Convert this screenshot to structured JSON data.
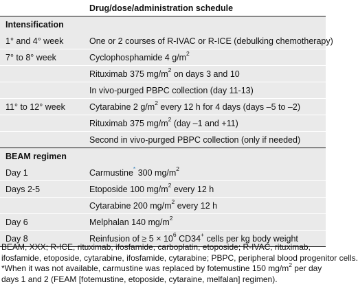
{
  "header": {
    "col2": "Drug/dose/administration schedule"
  },
  "sections": [
    {
      "title": "Intensification",
      "rows": [
        {
          "time": "1° and 4° week",
          "text": "One or 2 courses of R-IVAC or R-ICE (debulking chemotherapy)"
        },
        {
          "time": "7° to 8° week",
          "text_pre": "Cyclophosphamide 4 g/m",
          "sup": "2",
          "text_post": ""
        },
        {
          "time": "",
          "text_pre": "Rituximab 375 mg/m",
          "sup": "2",
          "text_post": " on days 3 and 10"
        },
        {
          "time": "",
          "text": "In vivo-purged PBPC collection (day 11-13)"
        },
        {
          "time": "11° to 12° week",
          "text_pre": "Cytarabine 2 g/m",
          "sup": "2",
          "text_post": " every 12 h for 4 days (days –5 to –2)"
        },
        {
          "time": "",
          "text_pre": "Rituximab 375 mg/m",
          "sup": "2",
          "text_post": " (day –1 and +11)"
        },
        {
          "time": "",
          "text": "Second in vivo-purged PBPC collection (only if needed)"
        }
      ]
    },
    {
      "title": "BEAM regimen",
      "rows": [
        {
          "time": "Day 1",
          "text_pre": "Carmustine",
          "asterisk": "*",
          "text_mid": " 300 mg/m",
          "sup": "2",
          "text_post": ""
        },
        {
          "time": "Days 2-5",
          "text_pre": "Etoposide 100 mg/m",
          "sup": "2",
          "text_post": " every 12 h"
        },
        {
          "time": "",
          "text_pre": "Cytarabine 200 mg/m",
          "sup": "2",
          "text_post": " every 12 h"
        },
        {
          "time": "Day 6",
          "text_pre": "Melphalan 140 mg/m",
          "sup": "2",
          "text_post": ""
        },
        {
          "time": "Day 8",
          "text_pre": "Reinfusion of ≥ 5 × 10",
          "sup": "6",
          "text_mid2": " CD34",
          "sup2": "+",
          "text_post": " cells per kg body weight"
        }
      ]
    }
  ],
  "footnotes": {
    "line1": "BEAM, XXX; R-ICE, rituximab, ifosfamide, carboplatin, etoposide; R-IVAC, rituximab,",
    "line2": "ifosfamide, etoposide, cytarabine, ifosfamide, cytarabine; PBPC, peripheral blood progenitor cells.",
    "line3_pre": "*When it was not available, carmustine was replaced by fotemustine 150 mg/m",
    "line3_sup": "2",
    "line3_post": " per day",
    "line4": "days 1 and 2 (FEAM [fotemustine, etoposide, cytaraine, melfalan] regimen)."
  }
}
